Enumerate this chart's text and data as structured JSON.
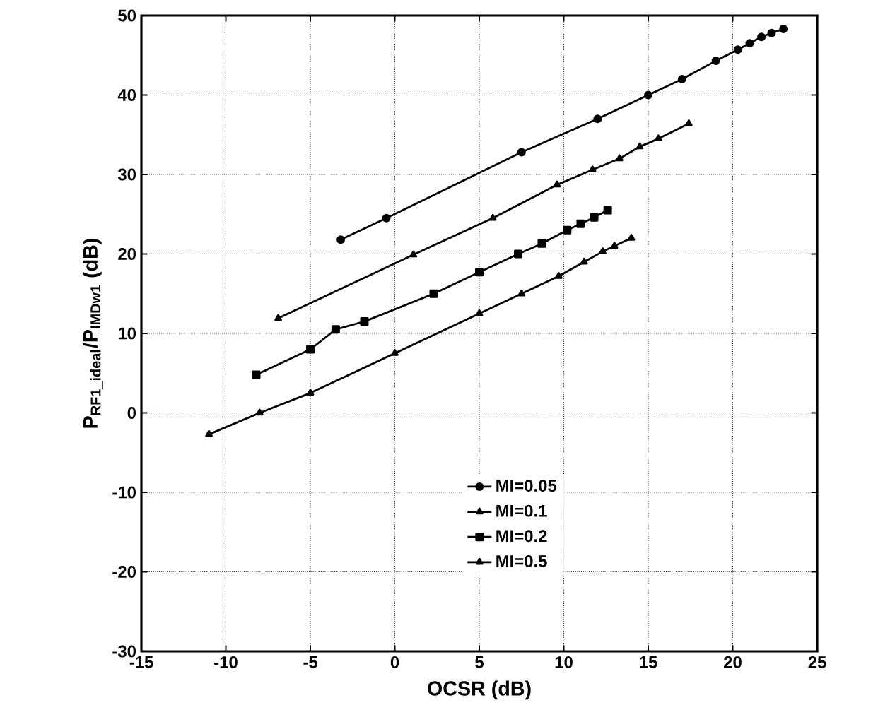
{
  "chart_data": {
    "type": "line",
    "xlabel": "OCSR (dB)",
    "ylabel": "P$_{RF1_ideal}$/P$_{IMDw1}$ (dB)",
    "xlim": [
      -15,
      25
    ],
    "xticks": [
      -15,
      -10,
      -5,
      0,
      5,
      10,
      15,
      20,
      25
    ],
    "ylim": [
      -30,
      50
    ],
    "yticks": [
      -30,
      -20,
      -10,
      0,
      10,
      20,
      30,
      40,
      50
    ],
    "grid": true,
    "legend": "bottom",
    "series": [
      {
        "name": "MI=0.05",
        "color": "#000000",
        "marker": "circle",
        "x": [
          -3.2,
          -0.5,
          7.5,
          12,
          15,
          17,
          19,
          20.3,
          21,
          21.7,
          22.3,
          23
        ],
        "values": [
          21.8,
          24.5,
          32.8,
          37,
          40,
          42,
          44.3,
          45.7,
          46.5,
          47.3,
          47.8,
          48.3
        ]
      },
      {
        "name": "MI=0.1",
        "color": "#000000",
        "marker": "triangle",
        "x": [
          -6.9,
          1.1,
          5.8,
          9.6,
          11.7,
          13.3,
          14.5,
          15.6,
          17.4
        ],
        "values": [
          11.9,
          19.9,
          24.5,
          28.7,
          30.6,
          32,
          33.5,
          34.5,
          36.4
        ]
      },
      {
        "name": "MI=0.2",
        "color": "#000000",
        "marker": "square",
        "x": [
          -8.2,
          -5,
          -3.5,
          -1.8,
          2.3,
          5,
          7.3,
          8.7,
          10.2,
          11,
          11.8,
          12.6
        ],
        "values": [
          4.8,
          8,
          10.5,
          11.5,
          15,
          17.7,
          20,
          21.3,
          23,
          23.8,
          24.6,
          25.5
        ]
      },
      {
        "name": "MI=0.5",
        "color": "#000000",
        "marker": "triangle",
        "x": [
          -11,
          -8,
          -5,
          0,
          5,
          7.5,
          9.7,
          11.2,
          12.3,
          13,
          14
        ],
        "values": [
          -2.7,
          0,
          2.5,
          7.5,
          12.5,
          15,
          17.2,
          19,
          20.3,
          21,
          22
        ]
      }
    ]
  }
}
